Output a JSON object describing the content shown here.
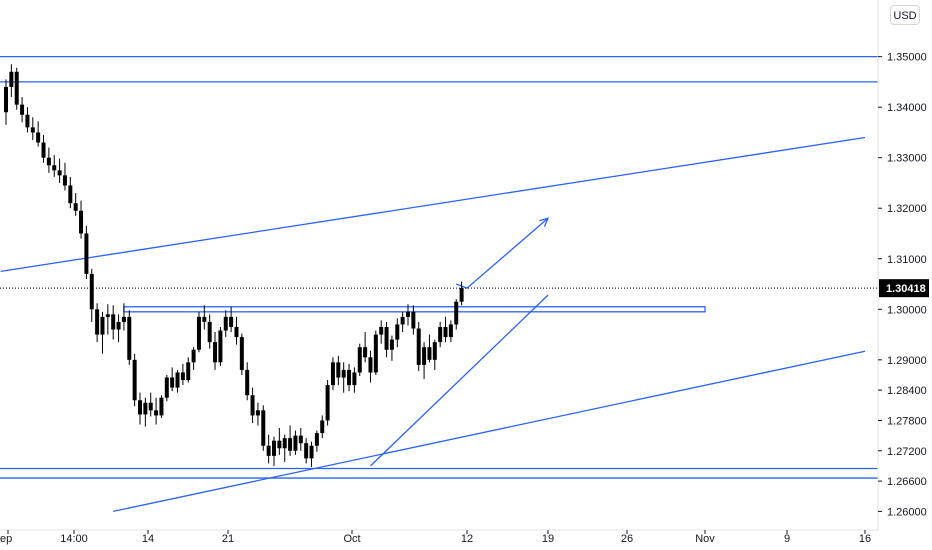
{
  "currency": "USD",
  "colors": {
    "candle": "#000000",
    "drawing": "#2962ff",
    "axis_text": "#131722",
    "price_label_bg": "#000000",
    "price_label_text": "#ffffff",
    "background": "#ffffff"
  },
  "chart_data": {
    "type": "candlestick",
    "ylim": [
      1.2585,
      1.3525
    ],
    "y_ticks": [
      "1.35000",
      "1.34000",
      "1.33000",
      "1.32000",
      "1.31000",
      "1.30000",
      "1.29000",
      "1.28400",
      "1.27800",
      "1.27200",
      "1.26600",
      "1.26000"
    ],
    "x_ticks": [
      "ep",
      "14:00",
      "14",
      "21",
      "Oct",
      "12",
      "19",
      "26",
      "Nov",
      "9",
      "16"
    ],
    "current_price": "1.30418",
    "grid": false,
    "candles": [
      [
        1.339,
        1.3455,
        1.3365,
        1.344
      ],
      [
        1.344,
        1.3485,
        1.342,
        1.347
      ],
      [
        1.347,
        1.3478,
        1.3395,
        1.3405
      ],
      [
        1.3405,
        1.342,
        1.337,
        1.3385
      ],
      [
        1.3385,
        1.34,
        1.335,
        1.336
      ],
      [
        1.336,
        1.338,
        1.3335,
        1.335
      ],
      [
        1.335,
        1.3372,
        1.3322,
        1.333
      ],
      [
        1.333,
        1.3345,
        1.329,
        1.33
      ],
      [
        1.33,
        1.332,
        1.327,
        1.3285
      ],
      [
        1.3285,
        1.3305,
        1.3262,
        1.3275
      ],
      [
        1.3275,
        1.3298,
        1.325,
        1.3265
      ],
      [
        1.3265,
        1.329,
        1.3235,
        1.3245
      ],
      [
        1.3245,
        1.3262,
        1.32,
        1.321
      ],
      [
        1.321,
        1.323,
        1.3185,
        1.3195
      ],
      [
        1.3195,
        1.3215,
        1.314,
        1.315
      ],
      [
        1.315,
        1.3165,
        1.306,
        1.307
      ],
      [
        1.307,
        1.308,
        1.2975,
        1.3
      ],
      [
        1.3,
        1.3012,
        1.2935,
        1.295
      ],
      [
        1.295,
        1.2995,
        1.2912,
        1.2985
      ],
      [
        1.2985,
        1.301,
        1.295,
        1.299
      ],
      [
        1.299,
        1.3008,
        1.294,
        1.296
      ],
      [
        1.296,
        1.299,
        1.2935,
        1.2975
      ],
      [
        1.2975,
        1.3012,
        1.2958,
        1.2985
      ],
      [
        1.2985,
        1.2998,
        1.289,
        1.29
      ],
      [
        1.29,
        1.2912,
        1.2808,
        1.282
      ],
      [
        1.282,
        1.2835,
        1.2772,
        1.2792
      ],
      [
        1.2792,
        1.2825,
        1.2768,
        1.2815
      ],
      [
        1.2815,
        1.2835,
        1.2788,
        1.28
      ],
      [
        1.28,
        1.2825,
        1.2772,
        1.279
      ],
      [
        1.279,
        1.283,
        1.2785,
        1.2825
      ],
      [
        1.2825,
        1.287,
        1.2818,
        1.2865
      ],
      [
        1.2865,
        1.2885,
        1.2838,
        1.2845
      ],
      [
        1.2845,
        1.288,
        1.2835,
        1.2875
      ],
      [
        1.2875,
        1.2892,
        1.285,
        1.286
      ],
      [
        1.286,
        1.2905,
        1.2855,
        1.2895
      ],
      [
        1.2895,
        1.2925,
        1.288,
        1.292
      ],
      [
        1.292,
        1.2995,
        1.2915,
        1.2985
      ],
      [
        1.2985,
        1.3008,
        1.296,
        1.2975
      ],
      [
        1.2975,
        1.299,
        1.2922,
        1.2935
      ],
      [
        1.2935,
        1.2955,
        1.288,
        1.2895
      ],
      [
        1.2895,
        1.2965,
        1.2888,
        1.2958
      ],
      [
        1.2958,
        1.2998,
        1.2945,
        1.2985
      ],
      [
        1.2985,
        1.3005,
        1.2955,
        1.2965
      ],
      [
        1.2965,
        1.2985,
        1.293,
        1.2945
      ],
      [
        1.2945,
        1.2952,
        1.287,
        1.288
      ],
      [
        1.288,
        1.2895,
        1.282,
        1.283
      ],
      [
        1.283,
        1.2845,
        1.2775,
        1.279
      ],
      [
        1.279,
        1.2815,
        1.277,
        1.28
      ],
      [
        1.28,
        1.281,
        1.272,
        1.273
      ],
      [
        1.273,
        1.2752,
        1.2695,
        1.271
      ],
      [
        1.271,
        1.2748,
        1.269,
        1.274
      ],
      [
        1.274,
        1.2765,
        1.2712,
        1.2725
      ],
      [
        1.2725,
        1.2752,
        1.2698,
        1.2745
      ],
      [
        1.2745,
        1.277,
        1.271,
        1.272
      ],
      [
        1.272,
        1.276,
        1.2712,
        1.275
      ],
      [
        1.275,
        1.2765,
        1.272,
        1.2735
      ],
      [
        1.2735,
        1.2745,
        1.2695,
        1.2705
      ],
      [
        1.2705,
        1.2738,
        1.2688,
        1.273
      ],
      [
        1.273,
        1.276,
        1.2718,
        1.2755
      ],
      [
        1.2755,
        1.279,
        1.2745,
        1.278
      ],
      [
        1.278,
        1.286,
        1.277,
        1.285
      ],
      [
        1.285,
        1.2905,
        1.284,
        1.2895
      ],
      [
        1.2895,
        1.2908,
        1.285,
        1.2865
      ],
      [
        1.2865,
        1.2895,
        1.2835,
        1.288
      ],
      [
        1.288,
        1.2892,
        1.2838,
        1.285
      ],
      [
        1.285,
        1.2885,
        1.2835,
        1.2875
      ],
      [
        1.2875,
        1.2932,
        1.2868,
        1.2925
      ],
      [
        1.2925,
        1.2955,
        1.2895,
        1.2905
      ],
      [
        1.2905,
        1.2918,
        1.2855,
        1.2875
      ],
      [
        1.2875,
        1.2958,
        1.287,
        1.295
      ],
      [
        1.295,
        1.2978,
        1.2932,
        1.2965
      ],
      [
        1.2965,
        1.2975,
        1.2905,
        1.292
      ],
      [
        1.292,
        1.2948,
        1.2898,
        1.294
      ],
      [
        1.294,
        1.2982,
        1.2925,
        1.297
      ],
      [
        1.297,
        1.2995,
        1.2955,
        1.2985
      ],
      [
        1.2985,
        1.301,
        1.2968,
        1.2995
      ],
      [
        1.2995,
        1.3008,
        1.295,
        1.2962
      ],
      [
        1.2962,
        1.2975,
        1.2878,
        1.289
      ],
      [
        1.289,
        1.2935,
        1.2862,
        1.2925
      ],
      [
        1.2925,
        1.295,
        1.2895,
        1.29
      ],
      [
        1.29,
        1.294,
        1.288,
        1.2935
      ],
      [
        1.2935,
        1.2975,
        1.2925,
        1.2965
      ],
      [
        1.2965,
        1.2985,
        1.2935,
        1.2945
      ],
      [
        1.2945,
        1.2978,
        1.2935,
        1.297
      ],
      [
        1.297,
        1.302,
        1.296,
        1.3015
      ],
      [
        1.3015,
        1.3055,
        1.3008,
        1.3042
      ]
    ],
    "drawings": {
      "horizontal_lines": [
        1.35,
        1.345,
        1.2685,
        1.2666
      ],
      "zone": {
        "from_candle": 22,
        "to_date_label": "Nov",
        "top": 1.3005,
        "bottom": 1.2995
      },
      "channel_upper": [
        [
          -1,
          1.3075
        ],
        [
          "16",
          1.334
        ]
      ],
      "channel_lower": [
        [
          20,
          1.26
        ],
        [
          "16",
          1.2917
        ]
      ],
      "support_trendline": [
        [
          68,
          1.269
        ],
        [
          "19",
          1.3028
        ]
      ],
      "projection_arrow": [
        [
          84,
          1.305
        ],
        [
          "12",
          1.3042
        ],
        [
          "19",
          1.318
        ]
      ]
    }
  }
}
